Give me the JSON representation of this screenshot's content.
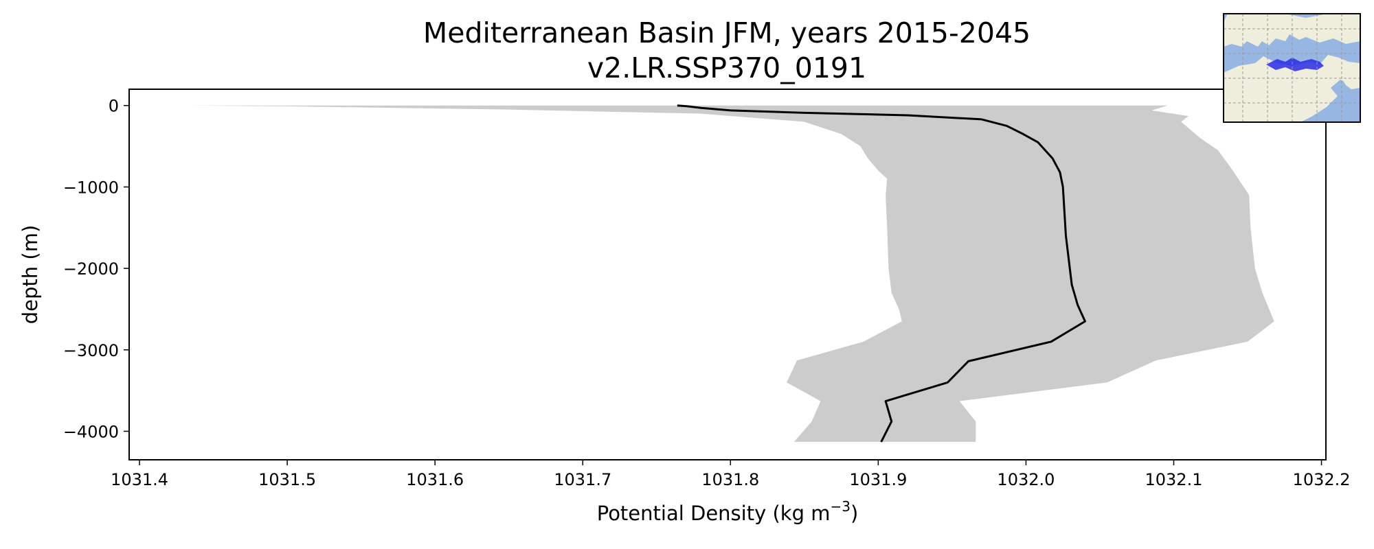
{
  "chart_data": {
    "type": "area",
    "title_line1": "Mediterranean Basin JFM, years 2015-2045",
    "title_line2": "v2.LR.SSP370_0191",
    "xlabel": "Potential Density (kg m",
    "xlabel_superscript": "−3",
    "xlabel_suffix": ")",
    "ylabel": "depth (m)",
    "xlim": [
      1031.393,
      1032.203
    ],
    "ylim": [
      -4350,
      200
    ],
    "xticks": [
      1031.4,
      1031.5,
      1031.6,
      1031.7,
      1031.8,
      1031.9,
      1032.0,
      1032.1,
      1032.2
    ],
    "xtick_labels": [
      "1031.4",
      "1031.5",
      "1031.6",
      "1031.7",
      "1031.8",
      "1031.9",
      "1032.0",
      "1032.1",
      "1032.2"
    ],
    "yticks": [
      0,
      -1000,
      -2000,
      -3000,
      -4000
    ],
    "ytick_labels": [
      "0",
      "−1000",
      "−2000",
      "−3000",
      "−4000"
    ],
    "grid": false,
    "series": [
      {
        "kind": "mean_profile",
        "color": "#000000",
        "points": [
          {
            "x": 1031.764,
            "y": 0
          },
          {
            "x": 1031.771,
            "y": -10
          },
          {
            "x": 1031.78,
            "y": -30
          },
          {
            "x": 1031.8,
            "y": -60
          },
          {
            "x": 1031.85,
            "y": -90
          },
          {
            "x": 1031.92,
            "y": -120
          },
          {
            "x": 1031.97,
            "y": -170
          },
          {
            "x": 1031.987,
            "y": -250
          },
          {
            "x": 1031.998,
            "y": -350
          },
          {
            "x": 1032.008,
            "y": -450
          },
          {
            "x": 1032.018,
            "y": -650
          },
          {
            "x": 1032.023,
            "y": -820
          },
          {
            "x": 1032.025,
            "y": -1000
          },
          {
            "x": 1032.026,
            "y": -1300
          },
          {
            "x": 1032.027,
            "y": -1600
          },
          {
            "x": 1032.029,
            "y": -1900
          },
          {
            "x": 1032.031,
            "y": -2200
          },
          {
            "x": 1032.035,
            "y": -2450
          },
          {
            "x": 1032.04,
            "y": -2650
          },
          {
            "x": 1032.017,
            "y": -2900
          },
          {
            "x": 1031.961,
            "y": -3140
          },
          {
            "x": 1031.947,
            "y": -3400
          },
          {
            "x": 1031.905,
            "y": -3630
          },
          {
            "x": 1031.909,
            "y": -3880
          },
          {
            "x": 1031.902,
            "y": -4130
          }
        ]
      },
      {
        "kind": "range_band",
        "color": "#cccccc",
        "min": [
          {
            "x": 1031.432,
            "y": 0
          },
          {
            "x": 1031.5,
            "y": -10
          },
          {
            "x": 1031.65,
            "y": -50
          },
          {
            "x": 1031.78,
            "y": -100
          },
          {
            "x": 1031.85,
            "y": -200
          },
          {
            "x": 1031.875,
            "y": -350
          },
          {
            "x": 1031.888,
            "y": -500
          },
          {
            "x": 1031.893,
            "y": -650
          },
          {
            "x": 1031.9,
            "y": -800
          },
          {
            "x": 1031.906,
            "y": -900
          },
          {
            "x": 1031.905,
            "y": -1100
          },
          {
            "x": 1031.906,
            "y": -1500
          },
          {
            "x": 1031.907,
            "y": -2000
          },
          {
            "x": 1031.909,
            "y": -2300
          },
          {
            "x": 1031.914,
            "y": -2500
          },
          {
            "x": 1031.916,
            "y": -2650
          },
          {
            "x": 1031.89,
            "y": -2900
          },
          {
            "x": 1031.845,
            "y": -3130
          },
          {
            "x": 1031.838,
            "y": -3400
          },
          {
            "x": 1031.861,
            "y": -3630
          },
          {
            "x": 1031.855,
            "y": -3880
          },
          {
            "x": 1031.843,
            "y": -4130
          }
        ],
        "max": [
          {
            "x": 1032.096,
            "y": 0
          },
          {
            "x": 1032.085,
            "y": -60
          },
          {
            "x": 1032.11,
            "y": -130
          },
          {
            "x": 1032.105,
            "y": -200
          },
          {
            "x": 1032.118,
            "y": -400
          },
          {
            "x": 1032.13,
            "y": -550
          },
          {
            "x": 1032.14,
            "y": -800
          },
          {
            "x": 1032.151,
            "y": -1100
          },
          {
            "x": 1032.152,
            "y": -1500
          },
          {
            "x": 1032.155,
            "y": -2000
          },
          {
            "x": 1032.16,
            "y": -2300
          },
          {
            "x": 1032.168,
            "y": -2650
          },
          {
            "x": 1032.15,
            "y": -2900
          },
          {
            "x": 1032.088,
            "y": -3130
          },
          {
            "x": 1032.055,
            "y": -3400
          },
          {
            "x": 1031.955,
            "y": -3630
          },
          {
            "x": 1031.966,
            "y": -3880
          },
          {
            "x": 1031.966,
            "y": -4130
          }
        ]
      }
    ]
  },
  "inset_map": {
    "ocean_color": "#98b6e2",
    "land_color": "#efeedc",
    "region_color": "#2a2ae6",
    "grid_color": "#9a9a9a"
  },
  "colors": {
    "axes": "#000000",
    "background": "#ffffff"
  }
}
